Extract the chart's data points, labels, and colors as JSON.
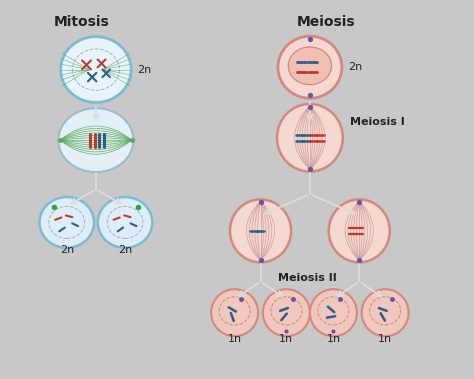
{
  "bg_color": "#c8c8c8",
  "title_mitosis": "Mitosis",
  "title_meiosis": "Meiosis",
  "label_meiosis1": "Meiosis I",
  "label_meiosis2": "Meiosis II",
  "label_2n": "2n",
  "label_1n": "1n",
  "cell_blue_outer": "#7bbbd4",
  "cell_blue_fill": "#ddeef8",
  "cell_blue_fill2": "#e8f4fc",
  "cell_pink_outer": "#d4887a",
  "cell_pink_fill": "#f0c8be",
  "cell_pink_fill2": "#f5d8d0",
  "cell_pink_inner": "#e8b0a4",
  "cell_light_pink_fill": "#f0c0b4",
  "spindle_green": "#5aaa5a",
  "spindle_pink": "#cc9999",
  "spindle_blue": "#8899bb",
  "chr_red": "#c0392b",
  "chr_blue": "#2c5f8a",
  "chr_pink_dark": "#8855aa",
  "centriole_color": "#6655aa",
  "nucleus_dashed": "#aaaacc",
  "arrow_color": "#dddddd",
  "text_color": "#222222",
  "green_dot": "#22aa44"
}
